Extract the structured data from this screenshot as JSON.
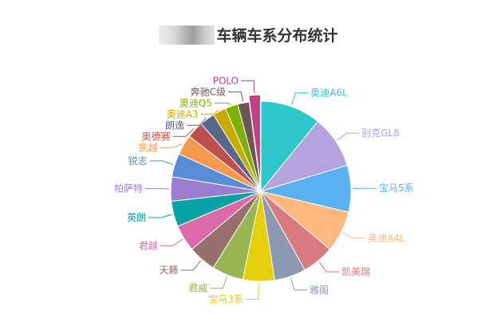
{
  "chart_data": {
    "type": "pie",
    "title": "车辆车系分布统计",
    "labels": [
      "奥迪A6L",
      "别克GL8",
      "宝马5系",
      "奥迪A4L",
      "凯美瑞",
      "雅阁",
      "宝马3系",
      "君威",
      "天籁",
      "君越",
      "英朗",
      "帕萨特",
      "锐志",
      "凯越",
      "奥德赛",
      "朗逸",
      "奥迪A3",
      "奥迪Q5",
      "奔驰C级",
      "POLO"
    ],
    "values": [
      10,
      8.7,
      7.7,
      6.8,
      5.3,
      5.2,
      5.2,
      5.2,
      4.6,
      4.4,
      4.2,
      4.0,
      3.9,
      3.3,
      2.8,
      2.5,
      2.2,
      2.1,
      1.9,
      1.9
    ],
    "colors": [
      "#2ec7c9",
      "#b6a2de",
      "#5ab1ef",
      "#ffb980",
      "#d87a80",
      "#8d98b3",
      "#e5cf0d",
      "#97b552",
      "#95706d",
      "#dc69aa",
      "#07a2a4",
      "#9a7fd1",
      "#588dd5",
      "#f5994e",
      "#c05050",
      "#59678c",
      "#c9ab00",
      "#7eb00a",
      "#6f5553",
      "#c14089"
    ]
  }
}
